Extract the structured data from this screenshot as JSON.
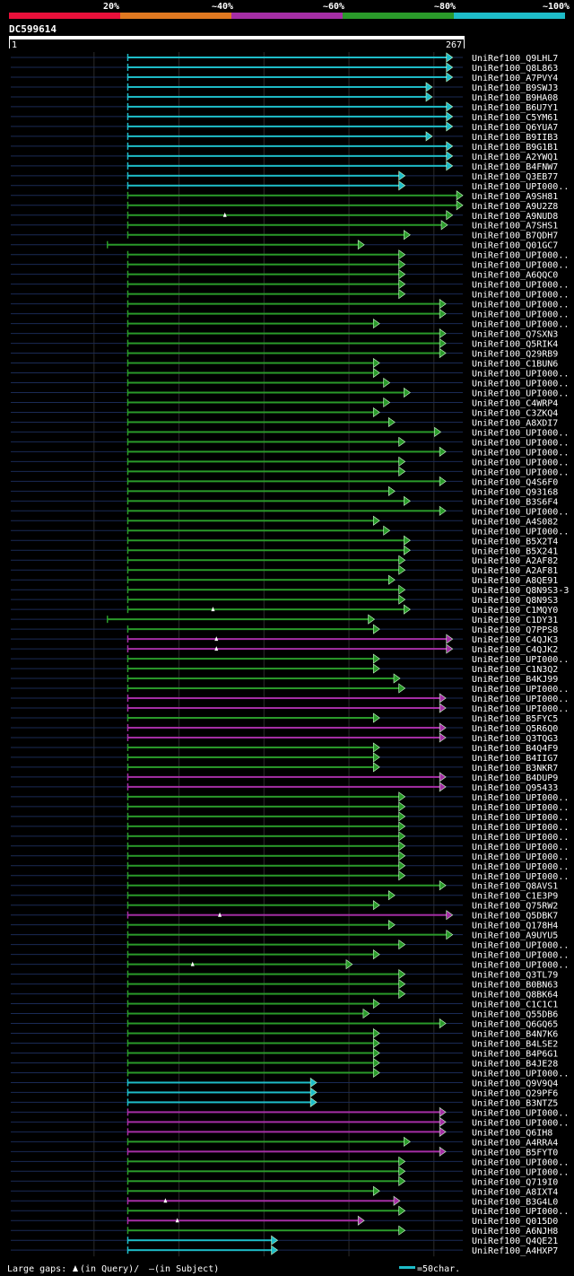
{
  "legend": {
    "bands": [
      {
        "label": "20%",
        "color": "#e8103a"
      },
      {
        "label": "~40%",
        "color": "#e07820"
      },
      {
        "label": "~60%",
        "color": "#a52ea5"
      },
      {
        "label": "~80%",
        "color": "#2a9a2a"
      },
      {
        "label": "~100%",
        "color": "#1ebcc8"
      }
    ]
  },
  "query": {
    "name": "DC599614",
    "start": "1",
    "end": "267",
    "length": 267
  },
  "footer": {
    "gaps_prefix": "Large gaps:",
    "gaps_query": "(in Query)/",
    "gaps_dash": "–",
    "gaps_subject": "(in Subject)",
    "scale_label": "=50char."
  },
  "chart_data": {
    "type": "alignment",
    "x_range": [
      1,
      267
    ],
    "gridlines": [
      50,
      100,
      150,
      200,
      250
    ],
    "colors": {
      "cyan": "#1ebcc8",
      "green": "#2a9a2a",
      "purple": "#a52ea5",
      "orange": "#e07820",
      "red": "#e8103a"
    },
    "hits": [
      {
        "name": "UniRef100_Q9LHL7",
        "start": 70,
        "end": 260,
        "color": "cyan"
      },
      {
        "name": "UniRef100_Q8L863",
        "start": 70,
        "end": 260,
        "color": "cyan"
      },
      {
        "name": "UniRef100_A7PVY4",
        "start": 70,
        "end": 260,
        "color": "cyan"
      },
      {
        "name": "UniRef100_B9SWJ3",
        "start": 70,
        "end": 248,
        "color": "cyan"
      },
      {
        "name": "UniRef100_B9HA08",
        "start": 70,
        "end": 248,
        "color": "cyan"
      },
      {
        "name": "UniRef100_B6U7Y1",
        "start": 70,
        "end": 260,
        "color": "cyan"
      },
      {
        "name": "UniRef100_C5YM61",
        "start": 70,
        "end": 260,
        "color": "cyan"
      },
      {
        "name": "UniRef100_Q6YUA7",
        "start": 70,
        "end": 260,
        "color": "cyan"
      },
      {
        "name": "UniRef100_B9IIB3",
        "start": 70,
        "end": 248,
        "color": "cyan"
      },
      {
        "name": "UniRef100_B9G1B1",
        "start": 70,
        "end": 260,
        "color": "cyan"
      },
      {
        "name": "UniRef100_A2YWQ1",
        "start": 70,
        "end": 260,
        "color": "cyan"
      },
      {
        "name": "UniRef100_B4FNW7",
        "start": 70,
        "end": 260,
        "color": "cyan"
      },
      {
        "name": "UniRef100_Q3EB77",
        "start": 70,
        "end": 232,
        "color": "cyan"
      },
      {
        "name": "UniRef100_UPI000..",
        "start": 70,
        "end": 232,
        "color": "cyan"
      },
      {
        "name": "UniRef100_A9SH81",
        "start": 70,
        "end": 266,
        "color": "green"
      },
      {
        "name": "UniRef100_A9U2Z8",
        "start": 70,
        "end": 266,
        "color": "green"
      },
      {
        "name": "UniRef100_A9NUD8",
        "start": 70,
        "end": 260,
        "color": "green",
        "gap": 127
      },
      {
        "name": "UniRef100_A7SHS1",
        "start": 70,
        "end": 257,
        "color": "green"
      },
      {
        "name": "UniRef100_B7QDH7",
        "start": 70,
        "end": 235,
        "color": "green"
      },
      {
        "name": "UniRef100_Q01GC7",
        "start": 58,
        "end": 208,
        "color": "green"
      },
      {
        "name": "UniRef100_UPI000..",
        "start": 70,
        "end": 232,
        "color": "green"
      },
      {
        "name": "UniRef100_UPI000..",
        "start": 70,
        "end": 232,
        "color": "green"
      },
      {
        "name": "UniRef100_A6QQC0",
        "start": 70,
        "end": 232,
        "color": "green"
      },
      {
        "name": "UniRef100_UPI000..",
        "start": 70,
        "end": 232,
        "color": "green"
      },
      {
        "name": "UniRef100_UPI000..",
        "start": 70,
        "end": 232,
        "color": "green"
      },
      {
        "name": "UniRef100_UPI000..",
        "start": 70,
        "end": 256,
        "color": "green"
      },
      {
        "name": "UniRef100_UPI000..",
        "start": 70,
        "end": 256,
        "color": "green"
      },
      {
        "name": "UniRef100_UPI000..",
        "start": 70,
        "end": 217,
        "color": "green"
      },
      {
        "name": "UniRef100_Q7SXN3",
        "start": 70,
        "end": 256,
        "color": "green"
      },
      {
        "name": "UniRef100_Q5RIK4",
        "start": 70,
        "end": 256,
        "color": "green"
      },
      {
        "name": "UniRef100_Q29RB9",
        "start": 70,
        "end": 256,
        "color": "green"
      },
      {
        "name": "UniRef100_C1BUN6",
        "start": 70,
        "end": 217,
        "color": "green"
      },
      {
        "name": "UniRef100_UPI000..",
        "start": 70,
        "end": 217,
        "color": "green"
      },
      {
        "name": "UniRef100_UPI000..",
        "start": 70,
        "end": 223,
        "color": "green"
      },
      {
        "name": "UniRef100_UPI000..",
        "start": 70,
        "end": 235,
        "color": "green"
      },
      {
        "name": "UniRef100_C4WRP4",
        "start": 70,
        "end": 223,
        "color": "green"
      },
      {
        "name": "UniRef100_C3ZKQ4",
        "start": 70,
        "end": 217,
        "color": "green"
      },
      {
        "name": "UniRef100_A8XDI7",
        "start": 70,
        "end": 226,
        "color": "green"
      },
      {
        "name": "UniRef100_UPI000..",
        "start": 70,
        "end": 253,
        "color": "green"
      },
      {
        "name": "UniRef100_UPI000..",
        "start": 70,
        "end": 232,
        "color": "green"
      },
      {
        "name": "UniRef100_UPI000..",
        "start": 70,
        "end": 256,
        "color": "green"
      },
      {
        "name": "UniRef100_UPI000..",
        "start": 70,
        "end": 232,
        "color": "green"
      },
      {
        "name": "UniRef100_UPI000..",
        "start": 70,
        "end": 232,
        "color": "green"
      },
      {
        "name": "UniRef100_Q4S6F0",
        "start": 70,
        "end": 256,
        "color": "green"
      },
      {
        "name": "UniRef100_Q93168",
        "start": 70,
        "end": 226,
        "color": "green"
      },
      {
        "name": "UniRef100_B3S6F4",
        "start": 70,
        "end": 235,
        "color": "green"
      },
      {
        "name": "UniRef100_UPI000..",
        "start": 70,
        "end": 256,
        "color": "green"
      },
      {
        "name": "UniRef100_A4S082",
        "start": 70,
        "end": 217,
        "color": "green"
      },
      {
        "name": "UniRef100_UPI000..",
        "start": 70,
        "end": 223,
        "color": "green"
      },
      {
        "name": "UniRef100_B5X2T4",
        "start": 70,
        "end": 235,
        "color": "green"
      },
      {
        "name": "UniRef100_B5X241",
        "start": 70,
        "end": 235,
        "color": "green"
      },
      {
        "name": "UniRef100_A2AF82",
        "start": 70,
        "end": 232,
        "color": "green"
      },
      {
        "name": "UniRef100_A2AF81",
        "start": 70,
        "end": 232,
        "color": "green"
      },
      {
        "name": "UniRef100_A8QE91",
        "start": 70,
        "end": 226,
        "color": "green"
      },
      {
        "name": "UniRef100_Q8N9S3-3",
        "start": 70,
        "end": 232,
        "color": "green"
      },
      {
        "name": "UniRef100_Q8N9S3",
        "start": 70,
        "end": 232,
        "color": "green"
      },
      {
        "name": "UniRef100_C1MQY0",
        "start": 70,
        "end": 235,
        "color": "green",
        "gap": 120
      },
      {
        "name": "UniRef100_C1DY31",
        "start": 58,
        "end": 214,
        "color": "green"
      },
      {
        "name": "UniRef100_Q7PPS8",
        "start": 70,
        "end": 217,
        "color": "green"
      },
      {
        "name": "UniRef100_C4QJK3",
        "start": 70,
        "end": 260,
        "color": "purple",
        "gap": 122
      },
      {
        "name": "UniRef100_C4QJK2",
        "start": 70,
        "end": 260,
        "color": "purple",
        "gap": 122
      },
      {
        "name": "UniRef100_UPI000..",
        "start": 70,
        "end": 217,
        "color": "green"
      },
      {
        "name": "UniRef100_C1N3Q2",
        "start": 70,
        "end": 217,
        "color": "green"
      },
      {
        "name": "UniRef100_B4KJ99",
        "start": 70,
        "end": 229,
        "color": "green"
      },
      {
        "name": "UniRef100_UPI000..",
        "start": 70,
        "end": 232,
        "color": "green"
      },
      {
        "name": "UniRef100_UPI000..",
        "start": 70,
        "end": 256,
        "color": "purple"
      },
      {
        "name": "UniRef100_UPI000..",
        "start": 70,
        "end": 256,
        "color": "purple"
      },
      {
        "name": "UniRef100_B5FYC5",
        "start": 70,
        "end": 217,
        "color": "green"
      },
      {
        "name": "UniRef100_Q5R6Q0",
        "start": 70,
        "end": 256,
        "color": "purple"
      },
      {
        "name": "UniRef100_Q3TQG3",
        "start": 70,
        "end": 256,
        "color": "purple"
      },
      {
        "name": "UniRef100_B4Q4F9",
        "start": 70,
        "end": 217,
        "color": "green"
      },
      {
        "name": "UniRef100_B4IIG7",
        "start": 70,
        "end": 217,
        "color": "green"
      },
      {
        "name": "UniRef100_B3NKR7",
        "start": 70,
        "end": 217,
        "color": "green"
      },
      {
        "name": "UniRef100_B4DUP9",
        "start": 70,
        "end": 256,
        "color": "purple"
      },
      {
        "name": "UniRef100_Q95433",
        "start": 70,
        "end": 256,
        "color": "purple"
      },
      {
        "name": "UniRef100_UPI000..",
        "start": 70,
        "end": 232,
        "color": "green"
      },
      {
        "name": "UniRef100_UPI000..",
        "start": 70,
        "end": 232,
        "color": "green"
      },
      {
        "name": "UniRef100_UPI000..",
        "start": 70,
        "end": 232,
        "color": "green"
      },
      {
        "name": "UniRef100_UPI000..",
        "start": 70,
        "end": 232,
        "color": "green"
      },
      {
        "name": "UniRef100_UPI000..",
        "start": 70,
        "end": 232,
        "color": "green"
      },
      {
        "name": "UniRef100_UPI000..",
        "start": 70,
        "end": 232,
        "color": "green"
      },
      {
        "name": "UniRef100_UPI000..",
        "start": 70,
        "end": 232,
        "color": "green"
      },
      {
        "name": "UniRef100_UPI000..",
        "start": 70,
        "end": 232,
        "color": "green"
      },
      {
        "name": "UniRef100_UPI000..",
        "start": 70,
        "end": 232,
        "color": "green"
      },
      {
        "name": "UniRef100_Q8AVS1",
        "start": 70,
        "end": 256,
        "color": "green"
      },
      {
        "name": "UniRef100_C1E3P9",
        "start": 70,
        "end": 226,
        "color": "green"
      },
      {
        "name": "UniRef100_Q75RW2",
        "start": 70,
        "end": 217,
        "color": "green"
      },
      {
        "name": "UniRef100_Q5DBK7",
        "start": 70,
        "end": 260,
        "color": "purple",
        "gap": 124
      },
      {
        "name": "UniRef100_Q178H4",
        "start": 70,
        "end": 226,
        "color": "green"
      },
      {
        "name": "UniRef100_A9UYU5",
        "start": 70,
        "end": 260,
        "color": "green"
      },
      {
        "name": "UniRef100_UPI000..",
        "start": 70,
        "end": 232,
        "color": "green"
      },
      {
        "name": "UniRef100_UPI000..",
        "start": 70,
        "end": 217,
        "color": "green"
      },
      {
        "name": "UniRef100_UPI000..",
        "start": 70,
        "end": 201,
        "color": "green",
        "gap": 108
      },
      {
        "name": "UniRef100_Q3TL79",
        "start": 70,
        "end": 232,
        "color": "green"
      },
      {
        "name": "UniRef100_B0BN63",
        "start": 70,
        "end": 232,
        "color": "green"
      },
      {
        "name": "UniRef100_Q8BK64",
        "start": 70,
        "end": 232,
        "color": "green"
      },
      {
        "name": "UniRef100_C1C1C1",
        "start": 70,
        "end": 217,
        "color": "green"
      },
      {
        "name": "UniRef100_Q55DB6",
        "start": 70,
        "end": 211,
        "color": "green"
      },
      {
        "name": "UniRef100_Q6GQ65",
        "start": 70,
        "end": 256,
        "color": "green"
      },
      {
        "name": "UniRef100_B4N7K6",
        "start": 70,
        "end": 217,
        "color": "green"
      },
      {
        "name": "UniRef100_B4LSE2",
        "start": 70,
        "end": 217,
        "color": "green"
      },
      {
        "name": "UniRef100_B4P6G1",
        "start": 70,
        "end": 217,
        "color": "green"
      },
      {
        "name": "UniRef100_B4JE28",
        "start": 70,
        "end": 217,
        "color": "green"
      },
      {
        "name": "UniRef100_UPI000..",
        "start": 70,
        "end": 217,
        "color": "green"
      },
      {
        "name": "UniRef100_Q9V9Q4",
        "start": 70,
        "end": 180,
        "color": "cyan"
      },
      {
        "name": "UniRef100_Q29PF6",
        "start": 70,
        "end": 180,
        "color": "cyan"
      },
      {
        "name": "UniRef100_B3NTZ5",
        "start": 70,
        "end": 180,
        "color": "cyan"
      },
      {
        "name": "UniRef100_UPI000..",
        "start": 70,
        "end": 256,
        "color": "purple"
      },
      {
        "name": "UniRef100_UPI000..",
        "start": 70,
        "end": 256,
        "color": "purple"
      },
      {
        "name": "UniRef100_Q6IH8",
        "start": 70,
        "end": 256,
        "color": "purple"
      },
      {
        "name": "UniRef100_A4RRA4",
        "start": 70,
        "end": 235,
        "color": "green"
      },
      {
        "name": "UniRef100_B5FYT0",
        "start": 70,
        "end": 256,
        "color": "purple"
      },
      {
        "name": "UniRef100_UPI000..",
        "start": 70,
        "end": 232,
        "color": "green"
      },
      {
        "name": "UniRef100_UPI000..",
        "start": 70,
        "end": 232,
        "color": "green"
      },
      {
        "name": "UniRef100_Q719I0",
        "start": 70,
        "end": 232,
        "color": "green"
      },
      {
        "name": "UniRef100_A8IXT4",
        "start": 70,
        "end": 217,
        "color": "green"
      },
      {
        "name": "UniRef100_B3G4L0",
        "start": 70,
        "end": 229,
        "color": "purple",
        "gap": 92
      },
      {
        "name": "UniRef100_UPI000..",
        "start": 70,
        "end": 232,
        "color": "green"
      },
      {
        "name": "UniRef100_Q015D0",
        "start": 70,
        "end": 208,
        "color": "purple",
        "gap": 99
      },
      {
        "name": "UniRef100_A6NJH8",
        "start": 70,
        "end": 232,
        "color": "green"
      },
      {
        "name": "UniRef100_Q4QE21",
        "start": 70,
        "end": 157,
        "color": "cyan"
      },
      {
        "name": "UniRef100_A4HXP7",
        "start": 70,
        "end": 157,
        "color": "cyan"
      }
    ]
  }
}
